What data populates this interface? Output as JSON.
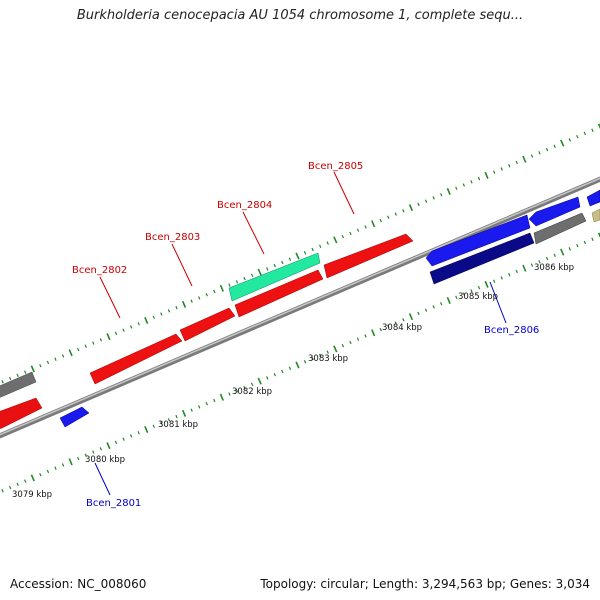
{
  "map": {
    "title": "Burkholderia cenocepacia AU 1054 chromosome 1, complete sequ...",
    "accession": "Accession: NC_008060",
    "summary": "Topology: circular; Length: 3,294,563 bp; Genes: 3,034"
  },
  "gene_labels": [
    {
      "text": "Bcen_2801",
      "color": "#0000cc"
    },
    {
      "text": "Bcen_2802",
      "color": "#cc0000"
    },
    {
      "text": "Bcen_2803",
      "color": "#cc0000"
    },
    {
      "text": "Bcen_2804",
      "color": "#cc0000"
    },
    {
      "text": "Bcen_2805",
      "color": "#cc0000"
    },
    {
      "text": "Bcen_2806",
      "color": "#0000cc"
    }
  ],
  "ruler_labels": [
    "3079 kbp",
    "3080 kbp",
    "3081 kbp",
    "3082 kbp",
    "3083 kbp",
    "3084 kbp",
    "3085 kbp",
    "3086 kbp"
  ],
  "colors": {
    "forward_gene": "#ee1111",
    "reverse_gene": "#1a1aee",
    "highlight_gene": "#22e8a0",
    "dark_reverse_gene": "#0a0a88",
    "other_gene": "#666666",
    "tan_gene": "#c8bc88",
    "backbone": "#888888",
    "tick": "#228822"
  }
}
